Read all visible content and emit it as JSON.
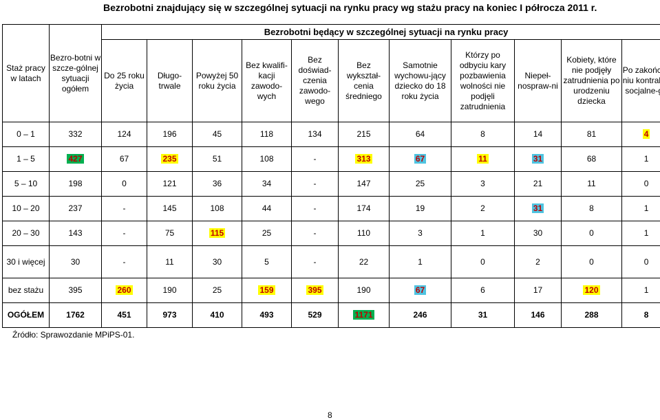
{
  "title": "Bezrobotni znajdujący się w szczególnej sytuacji na rynku pracy wg stażu pracy na koniec I półrocza 2011 r.",
  "header": {
    "col_staz": "Staż pracy w latach",
    "col_total": "Bezro-botni w szcze-gólnej sytuacji ogółem",
    "group": "Bezrobotni będący w szczególnej sytuacji na rynku pracy",
    "sub": [
      "Do 25 roku życia",
      "Długo-trwale",
      "Powyżej 50 roku życia",
      "Bez kwalifi-kacji zawodo-wych",
      "Bez doświad-czenia zawodo-wego",
      "Bez wykształ-cenia średniego",
      "Samotnie wychowu-jący dziecko do 18 roku życia",
      "Którzy po odbyciu kary pozbawienia wolności nie podjęli zatrudnienia",
      "Niepeł-nospraw-ni",
      "Kobiety, które nie podjęły zatrudnienia po urodzeniu dziecka",
      "Po zakończe niu kontraktu socjalne-go"
    ]
  },
  "rows": [
    {
      "label": "0 – 1",
      "values": [
        "332",
        "124",
        "196",
        "45",
        "118",
        "134",
        "215",
        "64",
        "8",
        "14",
        "81",
        "4"
      ]
    },
    {
      "label": "1 – 5",
      "values": [
        "427",
        "67",
        "235",
        "51",
        "108",
        "-",
        "313",
        "67",
        "11",
        "31",
        "68",
        "1"
      ]
    },
    {
      "label": "5 – 10",
      "values": [
        "198",
        "0",
        "121",
        "36",
        "34",
        "-",
        "147",
        "25",
        "3",
        "21",
        "11",
        "0"
      ]
    },
    {
      "label": "10 – 20",
      "values": [
        "237",
        "-",
        "145",
        "108",
        "44",
        "-",
        "174",
        "19",
        "2",
        "31",
        "8",
        "1"
      ]
    },
    {
      "label": "20 – 30",
      "values": [
        "143",
        "-",
        "75",
        "115",
        "25",
        "-",
        "110",
        "3",
        "1",
        "30",
        "0",
        "1"
      ]
    },
    {
      "label": "30 i więcej",
      "values": [
        "30",
        "-",
        "11",
        "30",
        "5",
        "-",
        "22",
        "1",
        "0",
        "2",
        "0",
        "0"
      ]
    },
    {
      "label": "bez stażu",
      "values": [
        "395",
        "260",
        "190",
        "25",
        "159",
        "395",
        "190",
        "67",
        "6",
        "17",
        "120",
        "1"
      ]
    },
    {
      "label": "OGÓŁEM",
      "values": [
        "1762",
        "451",
        "973",
        "410",
        "493",
        "529",
        "1171",
        "246",
        "31",
        "146",
        "288",
        "8"
      ]
    }
  ],
  "highlights": [
    {
      "row": 0,
      "col": 11,
      "color": "#FFFF00",
      "text_color": "#C00000"
    },
    {
      "row": 1,
      "col": 0,
      "color": "#00B050",
      "text_color": "#C00000"
    },
    {
      "row": 1,
      "col": 2,
      "color": "#FFFF00",
      "text_color": "#C00000"
    },
    {
      "row": 1,
      "col": 6,
      "color": "#FFFF00",
      "text_color": "#C00000"
    },
    {
      "row": 1,
      "col": 7,
      "color": "#4FC3E0",
      "text_color": "#C00000"
    },
    {
      "row": 1,
      "col": 8,
      "color": "#FFFF00",
      "text_color": "#C00000"
    },
    {
      "row": 1,
      "col": 9,
      "color": "#4FC3E0",
      "text_color": "#C00000"
    },
    {
      "row": 3,
      "col": 9,
      "color": "#4FC3E0",
      "text_color": "#C00000"
    },
    {
      "row": 4,
      "col": 3,
      "color": "#FFFF00",
      "text_color": "#C00000"
    },
    {
      "row": 6,
      "col": 1,
      "color": "#FFFF00",
      "text_color": "#C00000"
    },
    {
      "row": 6,
      "col": 4,
      "color": "#FFFF00",
      "text_color": "#C00000"
    },
    {
      "row": 6,
      "col": 5,
      "color": "#FFFF00",
      "text_color": "#C00000"
    },
    {
      "row": 6,
      "col": 7,
      "color": "#4FC3E0",
      "text_color": "#C00000"
    },
    {
      "row": 6,
      "col": 10,
      "color": "#FFFF00",
      "text_color": "#C00000"
    },
    {
      "row": 7,
      "col": 6,
      "color": "#00B050",
      "text_color": "#C00000"
    }
  ],
  "source": "Źródło: Sprawozdanie MPiPS-01.",
  "page_number": "8"
}
